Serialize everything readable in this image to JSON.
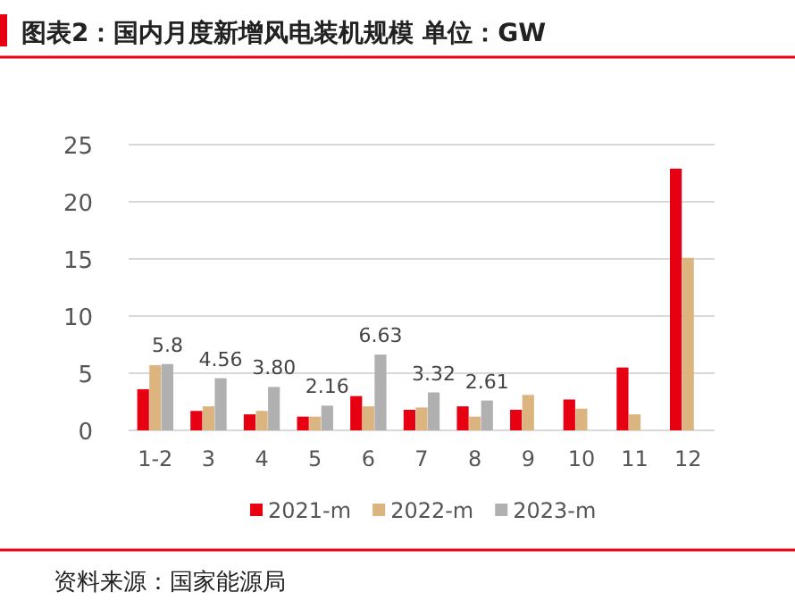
{
  "chart_data": {
    "type": "bar",
    "title": "图表2：国内月度新增风电装机规模 单位：GW",
    "categories": [
      "1-2",
      "3",
      "4",
      "5",
      "6",
      "7",
      "8",
      "9",
      "10",
      "11",
      "12"
    ],
    "series": [
      {
        "name": "2021-m",
        "color": "#e60012",
        "values": [
          3.6,
          1.7,
          1.4,
          1.2,
          3.0,
          1.8,
          2.1,
          1.8,
          2.7,
          5.5,
          22.9
        ]
      },
      {
        "name": "2022-m",
        "color": "#dcb47f",
        "values": [
          5.7,
          2.1,
          1.7,
          1.2,
          2.1,
          2.0,
          1.2,
          3.1,
          1.9,
          1.4,
          15.1
        ]
      },
      {
        "name": "2023-m",
        "color": "#b0b0b0",
        "values": [
          5.8,
          4.56,
          3.8,
          2.16,
          6.63,
          3.32,
          2.61,
          null,
          null,
          null,
          null
        ],
        "value_labels": [
          "5.8",
          "4.56",
          "3.80",
          "2.16",
          "6.63",
          "3.32",
          "2.61",
          null,
          null,
          null,
          null
        ]
      }
    ],
    "ylim": [
      0,
      25
    ],
    "yticks": [
      0,
      5,
      10,
      15,
      20,
      25
    ],
    "grid": "y",
    "legend": "bottom",
    "annotations": [
      "资料来源：国家能源局"
    ]
  }
}
